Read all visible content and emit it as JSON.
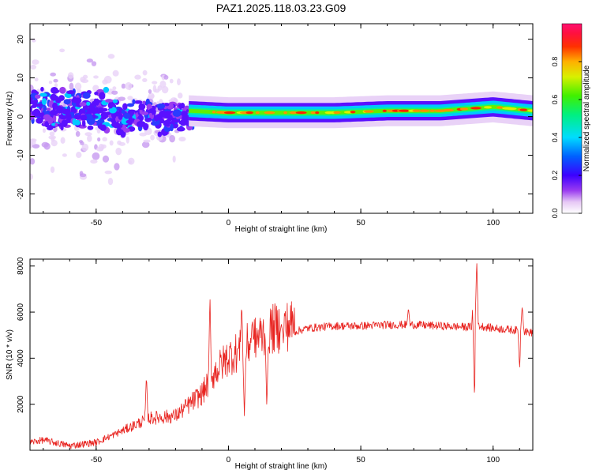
{
  "title": "PAZ1.2025.118.03.23.G09",
  "colors": {
    "snr_line": "#e8231f",
    "frame": "#000000",
    "background": "#ffffff"
  },
  "chart_data": [
    {
      "type": "heatmap",
      "name": "spectrogram",
      "xlabel": "Height of straight line (km)",
      "ylabel": "Frequency (Hz)",
      "xlim": [
        -75,
        115
      ],
      "ylim": [
        -25,
        24
      ],
      "x_ticks": [
        -50,
        0,
        50,
        100
      ],
      "x_tick_labels": [
        "-50",
        "0",
        "50",
        "100"
      ],
      "y_ticks": [
        -20,
        -10,
        0,
        10,
        20
      ],
      "y_tick_labels": [
        "-20",
        "-10",
        "0",
        "10",
        "20"
      ],
      "colorbar": {
        "label": "Normalized spectral amplitude",
        "range": [
          0,
          1
        ],
        "ticks": [
          0.0,
          0.2,
          0.4,
          0.6,
          0.8
        ],
        "tick_labels": [
          "0.0",
          "0.2",
          "0.4",
          "0.6",
          "0.8"
        ],
        "colormap": "rainbow (white-purple-blue-cyan-green-yellow-orange-red-pink)"
      },
      "ridge": {
        "description": "dominant frequency line",
        "x": [
          -15,
          0,
          20,
          40,
          60,
          80,
          90,
          100,
          115
        ],
        "freq": [
          1.5,
          1.0,
          1.0,
          1.0,
          1.5,
          1.5,
          2.0,
          2.5,
          1.5
        ]
      },
      "scatter_region": {
        "x_range": [
          -75,
          -15
        ],
        "freq_range": [
          -22,
          16
        ]
      }
    },
    {
      "type": "line",
      "name": "snr",
      "xlabel": "Height of straight line (km)",
      "ylabel": "SNR (10 * v/v)",
      "xlim": [
        -75,
        115
      ],
      "ylim": [
        0,
        8300
      ],
      "x_ticks": [
        -50,
        0,
        50,
        100
      ],
      "x_tick_labels": [
        "-50",
        "0",
        "50",
        "100"
      ],
      "y_ticks": [
        2000,
        4000,
        6000,
        8000
      ],
      "y_tick_labels": [
        "2000",
        "4000",
        "6000",
        "8000"
      ],
      "envelope": {
        "x": [
          -75,
          -70,
          -60,
          -50,
          -40,
          -30,
          -20,
          -10,
          -5,
          0,
          5,
          10,
          15,
          20,
          25,
          30,
          40,
          50,
          60,
          70,
          80,
          90,
          95,
          100,
          105,
          110,
          115
        ],
        "y": [
          300,
          400,
          150,
          300,
          800,
          1300,
          1400,
          2300,
          3200,
          3800,
          4100,
          4500,
          4900,
          5000,
          5150,
          5300,
          5400,
          5400,
          5450,
          5450,
          5400,
          5350,
          5400,
          5300,
          5250,
          5200,
          5100
        ]
      },
      "spikes": [
        {
          "x": -31,
          "y": 3300
        },
        {
          "x": -7,
          "y": 6800
        },
        {
          "x": 5,
          "y": 6400
        },
        {
          "x": 6,
          "y": 1500
        },
        {
          "x": 9,
          "y": 5700
        },
        {
          "x": 14.5,
          "y": 1800
        },
        {
          "x": 20,
          "y": 5500
        },
        {
          "x": 68,
          "y": 6200
        },
        {
          "x": 92.5,
          "y": 6700
        },
        {
          "x": 93,
          "y": 2200
        },
        {
          "x": 93.8,
          "y": 8300
        },
        {
          "x": 110,
          "y": 3500
        },
        {
          "x": 111,
          "y": 6300
        }
      ]
    }
  ]
}
